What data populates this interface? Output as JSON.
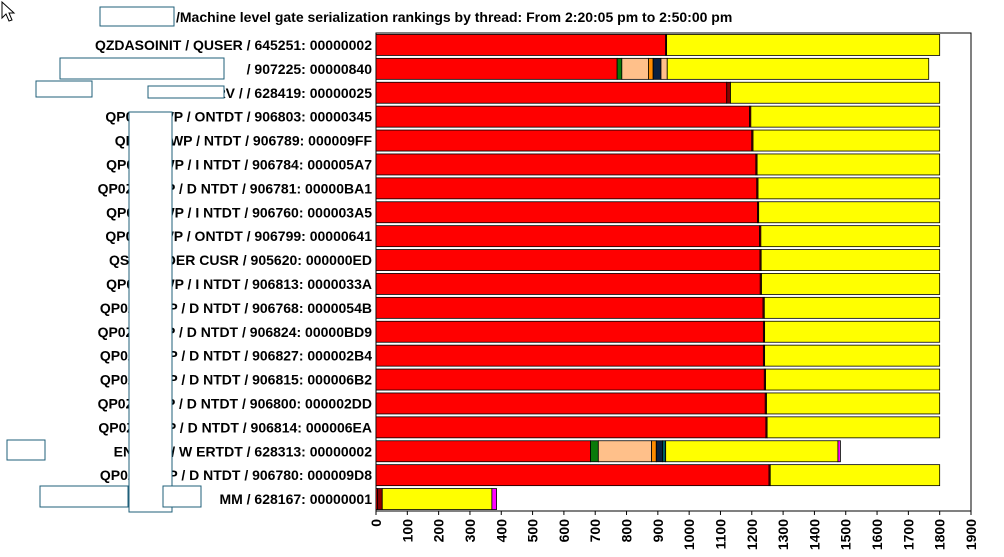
{
  "page": {
    "cursor_icon": "mouse-pointer-icon"
  },
  "chart_data": {
    "type": "bar",
    "orientation": "horizontal",
    "stacked": true,
    "title": "/Machine level gate serialization rankings by thread: From 2:20:05 pm to 2:50:00 pm",
    "xlabel": "",
    "ylabel": "",
    "xlim": [
      0,
      1900
    ],
    "x_ticks": [
      "0",
      "100",
      "200",
      "300",
      "400",
      "500",
      "600",
      "700",
      "800",
      "900",
      "1000",
      "1100",
      "1200",
      "1300",
      "1400",
      "1500",
      "1600",
      "1700",
      "1800",
      "1900"
    ],
    "legend": "none",
    "colors": {
      "red": "#ff0000",
      "green": "#0a7a0a",
      "peach": "#ffc08a",
      "orange": "#ff8c00",
      "navy": "#0a2040",
      "teal": "#006060",
      "darkred": "#8b0000",
      "yellow": "#ffff00",
      "magenta": "#ff00ff"
    },
    "categories": [
      "QZDASOINIT / QUSER / 645251: 00000002",
      "/ 907225: 00000840",
      "RSRV /",
      "/ 628419: 00000025",
      "QP0ZSPWP /",
      "ONTDT / 906803: 00000345",
      "QP0ZSPWP /",
      "NTDT / 906789: 000009FF",
      "QP0ZSPWP / I",
      "NTDT / 906784: 000005A7",
      "QP0ZSPWP / D",
      "NTDT / 906781: 00000BA1",
      "QP0ZSPWP / I",
      "NTDT / 906760: 000003A5",
      "QP0ZSPWP /",
      "ONTDT / 906799: 00000641",
      "QSJSENDER",
      "CUSR / 905620: 000000ED",
      "QP0ZSPWP / I",
      "NTDT / 906813: 0000033A",
      "QP0ZSPWP / D",
      "NTDT / 906768: 0000054B",
      "QP0ZSPWP / D",
      "NTDT / 906824: 00000BD9",
      "QP0ZSPWP / D",
      "NTDT / 906827: 000002B4",
      "QP0ZSPWP / D",
      "NTDT / 906815: 000006B2",
      "QP0ZSPWP / D",
      "NTDT / 906800: 000002DD",
      "QP0ZSPWP / D",
      "NTDT / 906814: 000006EA",
      "ENGINE / W",
      "ERTDT / 628313: 00000002",
      "QP0ZSPWP / D",
      "NTDT / 906780: 000009D8",
      "MM / 628167: 00000001"
    ],
    "rows": [
      {
        "left": "QZDASOINIT / QUSER / 645251: 00000002",
        "right": "",
        "segments": [
          [
            "red",
            925
          ],
          [
            "darkred",
            3
          ],
          [
            "yellow",
            872
          ]
        ]
      },
      {
        "left": "",
        "right": "/ 907225: 00000840",
        "segments": [
          [
            "red",
            770
          ],
          [
            "green",
            15
          ],
          [
            "peach",
            85
          ],
          [
            "orange",
            15
          ],
          [
            "navy",
            25
          ],
          [
            "peach",
            20
          ],
          [
            "yellow",
            835
          ]
        ]
      },
      {
        "left": "",
        "right": "RSRV /",
        "right2": "/ 628419: 00000025",
        "segments": [
          [
            "red",
            1120
          ],
          [
            "darkred",
            12
          ],
          [
            "yellow",
            668
          ]
        ]
      },
      {
        "left": "QP0ZSPWP /",
        "right": "ONTDT / 906803: 00000345",
        "segments": [
          [
            "red",
            1193
          ],
          [
            "darkred",
            4
          ],
          [
            "yellow",
            603
          ]
        ]
      },
      {
        "left": "QP0ZSPWP /",
        "right": "NTDT / 906789: 000009FF",
        "segments": [
          [
            "red",
            1200
          ],
          [
            "darkred",
            4
          ],
          [
            "yellow",
            596
          ]
        ]
      },
      {
        "left": "QP0ZSPWP / I",
        "right": "NTDT / 906784: 000005A7",
        "segments": [
          [
            "red",
            1213
          ],
          [
            "darkred",
            4
          ],
          [
            "yellow",
            583
          ]
        ]
      },
      {
        "left": "QP0ZSPWP / D",
        "right": "NTDT / 906781: 00000BA1",
        "segments": [
          [
            "red",
            1216
          ],
          [
            "darkred",
            4
          ],
          [
            "yellow",
            580
          ]
        ]
      },
      {
        "left": "QP0ZSPWP / I",
        "right": "NTDT / 906760: 000003A5",
        "segments": [
          [
            "red",
            1218
          ],
          [
            "darkred",
            4
          ],
          [
            "yellow",
            578
          ]
        ]
      },
      {
        "left": "QP0ZSPWP /",
        "right": "ONTDT / 906799: 00000641",
        "segments": [
          [
            "red",
            1225
          ],
          [
            "darkred",
            4
          ],
          [
            "yellow",
            571
          ]
        ]
      },
      {
        "left": "QSJSENDER",
        "right": "CUSR / 905620: 000000ED",
        "segments": [
          [
            "red",
            1226
          ],
          [
            "darkred",
            4
          ],
          [
            "yellow",
            570
          ]
        ]
      },
      {
        "left": "QP0ZSPWP / I",
        "right": "NTDT / 906813: 0000033A",
        "segments": [
          [
            "red",
            1227
          ],
          [
            "darkred",
            4
          ],
          [
            "yellow",
            569
          ]
        ]
      },
      {
        "left": "QP0ZSPWP / D",
        "right": "NTDT / 906768: 0000054B",
        "segments": [
          [
            "red",
            1236
          ],
          [
            "darkred",
            4
          ],
          [
            "yellow",
            560
          ]
        ]
      },
      {
        "left": "QP0ZSPWP / D",
        "right": "NTDT / 906824: 00000BD9",
        "segments": [
          [
            "red",
            1237
          ],
          [
            "darkred",
            4
          ],
          [
            "yellow",
            559
          ]
        ]
      },
      {
        "left": "QP0ZSPWP / D",
        "right": "NTDT / 906827: 000002B4",
        "segments": [
          [
            "red",
            1237
          ],
          [
            "darkred",
            4
          ],
          [
            "yellow",
            559
          ]
        ]
      },
      {
        "left": "QP0ZSPWP / D",
        "right": "NTDT / 906815: 000006B2",
        "segments": [
          [
            "red",
            1240
          ],
          [
            "darkred",
            4
          ],
          [
            "yellow",
            556
          ]
        ]
      },
      {
        "left": "QP0ZSPWP / D",
        "right": "NTDT / 906800: 000002DD",
        "segments": [
          [
            "red",
            1243
          ],
          [
            "darkred",
            4
          ],
          [
            "yellow",
            553
          ]
        ]
      },
      {
        "left": "QP0ZSPWP / D",
        "right": "NTDT / 906814: 000006EA",
        "segments": [
          [
            "red",
            1245
          ],
          [
            "darkred",
            4
          ],
          [
            "yellow",
            551
          ]
        ]
      },
      {
        "left": "ENGINE / W",
        "right": "ERTDT / 628313: 00000002",
        "segments": [
          [
            "red",
            685
          ],
          [
            "green",
            25
          ],
          [
            "peach",
            170
          ],
          [
            "orange",
            15
          ],
          [
            "navy",
            20
          ],
          [
            "teal",
            10
          ],
          [
            "yellow",
            550
          ],
          [
            "magenta",
            8
          ]
        ]
      },
      {
        "left": "QP0ZSPWP / D",
        "right": "NTDT / 906780: 000009D8",
        "segments": [
          [
            "red",
            1255
          ],
          [
            "darkred",
            4
          ],
          [
            "yellow",
            541
          ]
        ]
      },
      {
        "left": "",
        "right": "MM / 628167: 00000001",
        "segments": [
          [
            "red",
            5
          ],
          [
            "darkred",
            15
          ],
          [
            "yellow",
            350
          ],
          [
            "magenta",
            15
          ]
        ]
      }
    ]
  }
}
